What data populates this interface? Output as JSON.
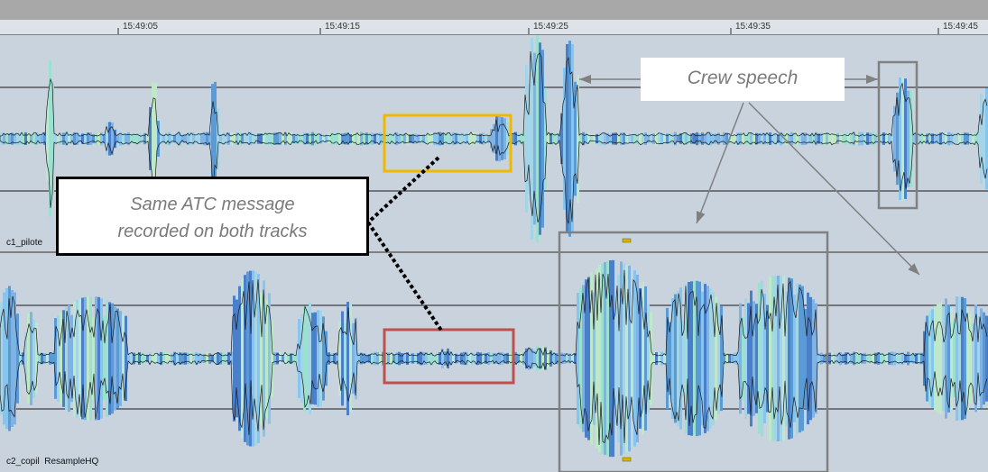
{
  "timeline": {
    "ticks": [
      "15:49:05",
      "15:49:15",
      "15:49:25",
      "15:49:35",
      "15:49:45"
    ]
  },
  "tracks": [
    {
      "label": "c1_pilote"
    },
    {
      "label": "c2_copil  ResampleHQ"
    }
  ],
  "annotations": {
    "atc_line1": "Same ATC message",
    "atc_line2": "recorded on both tracks",
    "crew": "Crew speech"
  },
  "colors": {
    "highlight_yellow": "#f0b800",
    "highlight_red": "#c0504d",
    "highlight_gray": "#808080",
    "track_bg": "#c9d3dd"
  }
}
